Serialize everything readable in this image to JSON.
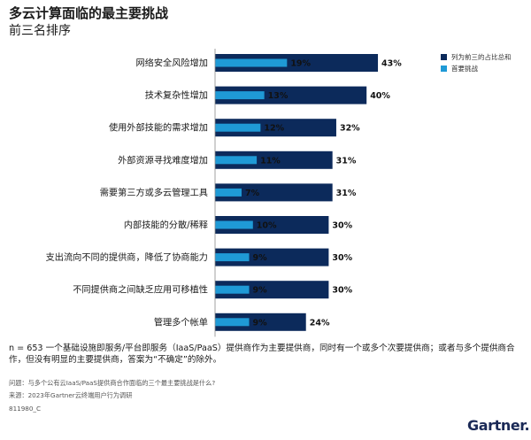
{
  "header": {
    "title": "多云计算面临的最主要挑战",
    "subtitle": "前三名排序"
  },
  "legend": {
    "items": [
      {
        "label": "列为前三的占比总和",
        "color": "#0c2a5b"
      },
      {
        "label": "首要挑战",
        "color": "#1f9ad6"
      }
    ]
  },
  "chart_data": {
    "type": "bar",
    "orientation": "horizontal",
    "title": "多云计算面临的最主要挑战",
    "subtitle": "前三名排序",
    "categories": [
      "网络安全风险增加",
      "技术复杂性增加",
      "使用外部技能的需求增加",
      "外部资源寻找难度增加",
      "需要第三方或多云管理工具",
      "内部技能的分散/稀释",
      "支出流向不同的提供商，降低了协商能力",
      "不同提供商之间缺乏应用可移植性",
      "管理多个帐单"
    ],
    "series": [
      {
        "name": "列为前三的占比总和",
        "color": "#0c2a5b",
        "values": [
          43,
          40,
          32,
          31,
          31,
          30,
          30,
          30,
          24
        ]
      },
      {
        "name": "首要挑战",
        "color": "#1f9ad6",
        "values": [
          19,
          13,
          12,
          11,
          7,
          10,
          9,
          9,
          9
        ]
      }
    ],
    "value_suffix": "%",
    "xlim": [
      0,
      50
    ],
    "xticks": [
      {
        "value": 0,
        "label": "0%"
      },
      {
        "value": 25,
        "label": "25%"
      },
      {
        "value": 50,
        "label": "50%"
      }
    ],
    "grid": false,
    "legend_position": "top-right"
  },
  "footer": {
    "note": "n = 653 一个基础设施即服务/平台即服务（IaaS/PaaS）提供商作为主要提供商，同时有一个或多个次要提供商；或者与多个提供商合作，但没有明显的主要提供商，答案为“不确定”的除外。",
    "question": "问题：与多个公有云IaaS/PaaS提供商合作面临的三个最主要挑战是什么?",
    "source": "来源：2023年Gartner云终端用户行为调研",
    "doc_id": "811980_C",
    "logo": "Gartner."
  }
}
